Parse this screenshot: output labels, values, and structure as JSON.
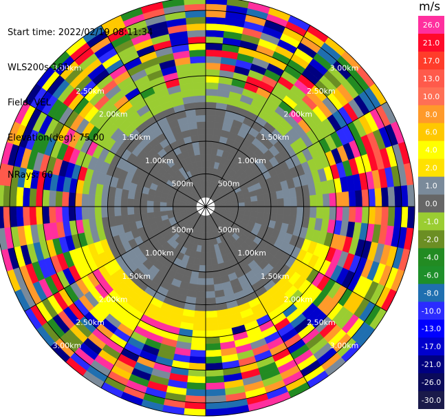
{
  "header": {
    "start_time": "Start time: 2022/02/19 08:11:34",
    "instrument": "WLS200s-181",
    "field": "Field: VEL",
    "elevation": "Elevation(deg): 75.00",
    "nrays": "NRays: 60"
  },
  "colorbar": {
    "unit": "m/s",
    "levels": [
      {
        "label": "26.0",
        "color": "#ff2f9e"
      },
      {
        "label": "21.0",
        "color": "#ff0a2a"
      },
      {
        "label": "17.0",
        "color": "#ff3c2a"
      },
      {
        "label": "13.0",
        "color": "#ff5a4b"
      },
      {
        "label": "10.0",
        "color": "#ff6f55"
      },
      {
        "label": "8.0",
        "color": "#ff9a2a"
      },
      {
        "label": "6.0",
        "color": "#ffc800"
      },
      {
        "label": "4.0",
        "color": "#ffff00"
      },
      {
        "label": "2.0",
        "color": "#ffe100"
      },
      {
        "label": "1.0",
        "color": "#7a8a9a"
      },
      {
        "label": "0.0",
        "color": "#666666"
      },
      {
        "label": "-1.0",
        "color": "#9acd32"
      },
      {
        "label": "-2.0",
        "color": "#6b8e23"
      },
      {
        "label": "-4.0",
        "color": "#228b22"
      },
      {
        "label": "-6.0",
        "color": "#1e8f2a"
      },
      {
        "label": "-8.0",
        "color": "#1f6fb0"
      },
      {
        "label": "-10.0",
        "color": "#2b2bff"
      },
      {
        "label": "-13.0",
        "color": "#0000ff"
      },
      {
        "label": "-17.0",
        "color": "#0000cd"
      },
      {
        "label": "-21.0",
        "color": "#000080"
      },
      {
        "label": "-26.0",
        "color": "#0a0a5a"
      },
      {
        "label": "-30.0",
        "color": "#1a1a4a"
      }
    ]
  },
  "chart_data": {
    "type": "heatmap",
    "projection": "polar PPI",
    "field": "VEL",
    "unit": "m/s",
    "nrays": 60,
    "range_rings_km": [
      0.5,
      1.0,
      1.5,
      2.0,
      2.5,
      3.0
    ],
    "range_ring_labels": [
      "500m",
      "1.00km",
      "1.50km",
      "2.00km",
      "2.50km",
      "3.00km"
    ],
    "max_range_km": 3.2,
    "spokes_deg": [
      0,
      30,
      60,
      90,
      120,
      150,
      180,
      210,
      240,
      270,
      300,
      330
    ],
    "velocity_bounds": [
      -30,
      -26,
      -21,
      -17,
      -13,
      -10,
      -8,
      -6,
      -4,
      -2,
      -1,
      0,
      1,
      2,
      4,
      6,
      8,
      10,
      13,
      17,
      21,
      26
    ],
    "colors": {
      "near_zero": "#666666",
      "slight_positive": "#7a8a9a",
      "slight_negative": "#9acd32",
      "positive": "#ffff00",
      "strong_positive": "#ff2f9e",
      "negative": "#0000cd"
    }
  }
}
